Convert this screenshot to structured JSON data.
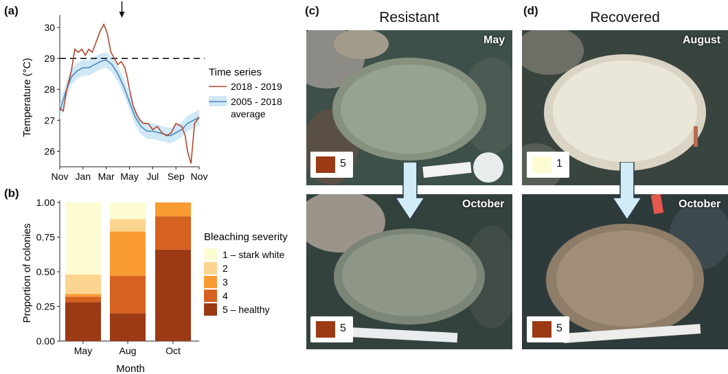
{
  "panels": {
    "a": "(a)",
    "b": "(b)",
    "c": "(c)",
    "d": "(d)"
  },
  "chart_data": [
    {
      "type": "line",
      "ylabel": "Temperature (°C)",
      "xlabel": "",
      "x_ticks": [
        "Nov",
        "Jan",
        "Mar",
        "May",
        "Jul",
        "Sep",
        "Nov"
      ],
      "y_ticks": [
        "26",
        "27",
        "28",
        "29",
        "30"
      ],
      "ylim": [
        25.5,
        30.4
      ],
      "threshold": 29,
      "arrow_month": "Apr",
      "legend_title": "Time series",
      "legend_placement": "right",
      "grid": false,
      "series": [
        {
          "name": "2018 - 2019",
          "color": "#b5442a",
          "x": [
            0,
            0.3,
            0.6,
            1.0,
            1.3,
            1.6,
            1.9,
            2.2,
            2.5,
            2.8,
            3.0,
            3.2,
            3.5,
            3.8,
            4.1,
            4.4,
            4.7,
            5.0,
            5.3,
            5.6,
            5.8,
            6.0,
            6.3,
            6.6,
            6.9,
            7.2,
            7.6,
            8.0,
            8.4,
            8.8,
            9.2,
            9.6,
            10.0,
            10.5,
            10.8,
            11.0,
            11.3,
            11.6,
            12.0
          ],
          "y": [
            27.4,
            27.3,
            28.0,
            28.6,
            29.3,
            29.2,
            29.3,
            29.1,
            29.3,
            29.2,
            29.4,
            29.6,
            29.9,
            30.1,
            29.8,
            29.2,
            29.0,
            28.8,
            28.9,
            28.7,
            28.4,
            28.0,
            27.5,
            27.2,
            27.0,
            26.9,
            26.9,
            26.7,
            26.8,
            26.6,
            26.5,
            26.6,
            26.9,
            26.8,
            26.5,
            26.0,
            25.6,
            26.9,
            27.1
          ]
        },
        {
          "name": "2005 - 2018 average",
          "color": "#4a86b8",
          "band_color": "#cfe8f6",
          "x": [
            0,
            0.5,
            1.0,
            1.5,
            2.0,
            2.5,
            3.0,
            3.5,
            4.0,
            4.5,
            5.0,
            5.5,
            6.0,
            6.5,
            7.0,
            7.5,
            8.0,
            8.5,
            9.0,
            9.5,
            10.0,
            10.5,
            11.0,
            11.5,
            12.0
          ],
          "y": [
            27.3,
            27.9,
            28.4,
            28.6,
            28.7,
            28.7,
            28.8,
            28.9,
            28.95,
            28.8,
            28.5,
            28.1,
            27.6,
            27.1,
            26.8,
            26.65,
            26.65,
            26.6,
            26.55,
            26.5,
            26.6,
            26.7,
            26.9,
            27.0,
            27.1
          ],
          "band_half_width": 0.25
        }
      ]
    },
    {
      "type": "bar",
      "stacked": true,
      "categories": [
        "May",
        "Aug",
        "Oct"
      ],
      "xlabel": "Month",
      "ylabel": "Proportion of colonies",
      "y_ticks": [
        "0.00",
        "0.25",
        "0.50",
        "0.75",
        "1.00"
      ],
      "ylim": [
        0,
        1
      ],
      "legend_title": "Bleaching severity",
      "legend_placement": "right",
      "series": [
        {
          "name": "5 – healthy",
          "color": "#9b3a14",
          "values": [
            0.28,
            0.2,
            0.66
          ]
        },
        {
          "name": "4",
          "color": "#d5621f",
          "values": [
            0.04,
            0.27,
            0.24
          ]
        },
        {
          "name": "3",
          "color": "#f89b33",
          "values": [
            0.02,
            0.32,
            0.1
          ]
        },
        {
          "name": "2",
          "color": "#fbd590",
          "values": [
            0.14,
            0.09,
            0.0
          ]
        },
        {
          "name": "1 – stark white",
          "color": "#fdfbd2",
          "values": [
            0.52,
            0.12,
            0.0
          ]
        }
      ]
    }
  ],
  "photos": {
    "c_title": "Resistant",
    "d_title": "Recovered",
    "c_top": {
      "month": "May",
      "score": "5",
      "score_color": "#9b3a14"
    },
    "c_bottom": {
      "month": "October",
      "score": "5",
      "score_color": "#9b3a14"
    },
    "d_top": {
      "month": "August",
      "score": "1",
      "score_color": "#fdfbd2"
    },
    "d_bottom": {
      "month": "October",
      "score": "5",
      "score_color": "#9b3a14"
    },
    "arrow_color": "#d2ecf7"
  }
}
